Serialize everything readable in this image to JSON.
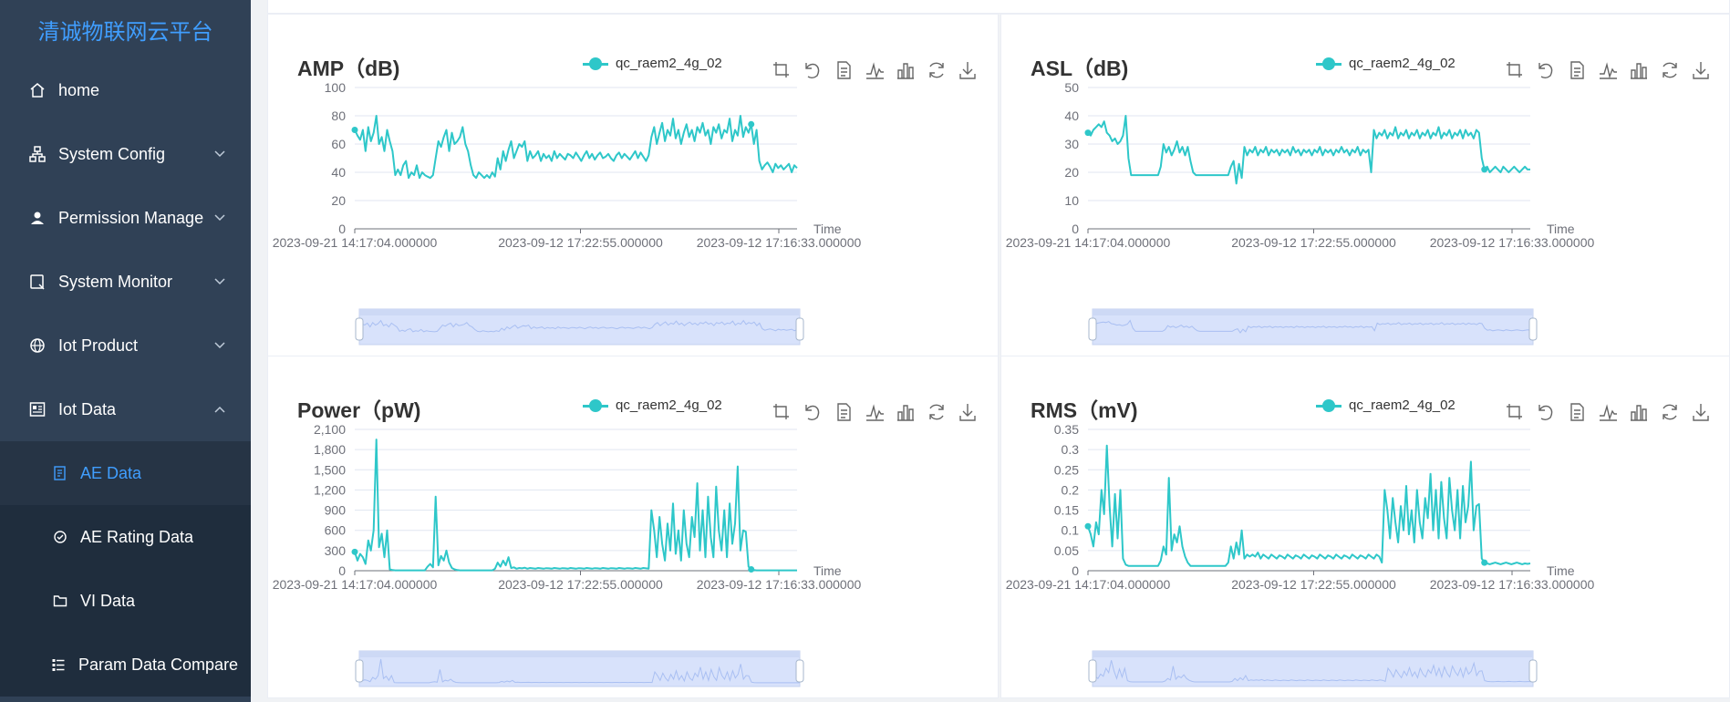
{
  "brand": "清诚物联网云平台",
  "menu": [
    {
      "key": "home",
      "label": "home",
      "icon": "home-icon",
      "expandable": false
    },
    {
      "key": "system-config",
      "label": "System Config",
      "icon": "sitemap-icon",
      "expandable": true,
      "expanded": false
    },
    {
      "key": "permission-manage",
      "label": "Permission Manage",
      "icon": "user-icon",
      "expandable": true,
      "expanded": false
    },
    {
      "key": "system-monitor",
      "label": "System Monitor",
      "icon": "monitor-icon",
      "expandable": true,
      "expanded": false
    },
    {
      "key": "iot-product",
      "label": "Iot Product",
      "icon": "globe-icon",
      "expandable": true,
      "expanded": false
    },
    {
      "key": "iot-data",
      "label": "Iot Data",
      "icon": "data-icon",
      "expandable": true,
      "expanded": true
    }
  ],
  "submenu": [
    {
      "key": "ae-data",
      "label": "AE Data",
      "icon": "document-icon",
      "active": true
    },
    {
      "key": "ae-rating-data",
      "label": "AE Rating Data",
      "icon": "rating-icon",
      "active": false
    },
    {
      "key": "vi-data",
      "label": "VI Data",
      "icon": "folder-icon",
      "active": false
    },
    {
      "key": "param-data-compare",
      "label": "Param Data Compare",
      "icon": "list-icon",
      "active": false
    }
  ],
  "colors": {
    "sidebar": "#304156",
    "accent": "#409eff",
    "series": "#2ec7c9",
    "submenu_bg": "#1f2d3d"
  },
  "chart_data": [
    {
      "type": "line",
      "title": "AMP（dB)",
      "legend": [
        "qc_raem2_4g_02"
      ],
      "xlabel": "Time",
      "ylim": [
        0,
        100
      ],
      "yticks": [
        "0",
        "20",
        "40",
        "60",
        "80",
        "100"
      ],
      "xticks": [
        "2023-09-21 14:17:04.000000",
        "2023-09-12 17:22:55.000000",
        "2023-09-12 17:16:33.000000"
      ],
      "series": [
        {
          "name": "qc_raem2_4g_02",
          "values": [
            70,
            66,
            63,
            70,
            55,
            72,
            62,
            68,
            80,
            60,
            65,
            55,
            70,
            62,
            55,
            38,
            42,
            38,
            45,
            48,
            36,
            40,
            38,
            45,
            36,
            40,
            38,
            37,
            36,
            38,
            50,
            62,
            58,
            65,
            70,
            55,
            68,
            60,
            62,
            65,
            72,
            60,
            55,
            45,
            38,
            36,
            40,
            38,
            36,
            38,
            36,
            40,
            37,
            50,
            42,
            55,
            48,
            56,
            62,
            50,
            55,
            60,
            58,
            62,
            48,
            55,
            50,
            52,
            55,
            48,
            53,
            50,
            52,
            48,
            55,
            50,
            53,
            51,
            49,
            53,
            52,
            50,
            54,
            51,
            48,
            52,
            55,
            50,
            53,
            49,
            52,
            54,
            50,
            51,
            53,
            50,
            48,
            52,
            54,
            50,
            53,
            51,
            49,
            52,
            55,
            50,
            54,
            51,
            48,
            52,
            65,
            72,
            60,
            68,
            75,
            62,
            70,
            66,
            78,
            64,
            70,
            60,
            68,
            74,
            65,
            70,
            62,
            72,
            68,
            75,
            66,
            70,
            60,
            72,
            68,
            74,
            64,
            70,
            68,
            78,
            62,
            70,
            66,
            80,
            65,
            72,
            68,
            74,
            60,
            70,
            48,
            42,
            45,
            47,
            44,
            40,
            46,
            43,
            45,
            42,
            44,
            46,
            40,
            45,
            43
          ]
        }
      ]
    },
    {
      "type": "line",
      "title": "ASL（dB)",
      "legend": [
        "qc_raem2_4g_02"
      ],
      "xlabel": "Time",
      "ylim": [
        0,
        50
      ],
      "yticks": [
        "0",
        "10",
        "20",
        "30",
        "40",
        "50"
      ],
      "xticks": [
        "2023-09-21 14:17:04.000000",
        "2023-09-12 17:22:55.000000",
        "2023-09-12 17:16:33.000000"
      ],
      "series": [
        {
          "name": "qc_raem2_4g_02",
          "values": [
            34,
            33,
            35,
            36,
            37,
            36,
            38,
            34,
            33,
            31,
            32,
            30,
            31,
            33,
            40,
            25,
            19,
            19,
            19,
            19,
            19,
            19,
            19,
            19,
            19,
            19,
            19,
            22,
            30,
            27,
            29,
            26,
            28,
            31,
            27,
            29,
            26,
            29,
            24,
            20,
            19,
            19,
            19,
            19,
            19,
            19,
            19,
            19,
            19,
            19,
            19,
            19,
            19,
            22,
            24,
            16,
            23,
            18,
            29,
            26,
            28,
            27,
            29,
            26,
            28,
            27,
            29,
            26,
            28,
            27,
            28,
            26,
            28,
            27,
            28,
            26,
            29,
            27,
            28,
            26,
            28,
            27,
            28,
            26,
            28,
            27,
            29,
            26,
            28,
            27,
            28,
            26,
            28,
            27,
            29,
            27,
            28,
            26,
            28,
            27,
            29,
            26,
            28,
            27,
            28,
            20,
            35,
            32,
            34,
            33,
            35,
            32,
            34,
            33,
            36,
            32,
            34,
            33,
            35,
            32,
            34,
            33,
            35,
            32,
            34,
            33,
            35,
            32,
            34,
            33,
            36,
            32,
            34,
            33,
            35,
            32,
            34,
            33,
            35,
            32,
            35,
            33,
            34,
            32,
            35,
            34,
            25,
            21,
            22,
            20,
            21,
            22,
            21,
            20,
            22,
            21,
            20,
            21,
            22,
            21,
            20,
            21,
            22,
            21,
            21
          ]
        }
      ]
    },
    {
      "type": "line",
      "title": "Power（pW)",
      "legend": [
        "qc_raem2_4g_02"
      ],
      "xlabel": "Time",
      "ylim": [
        0,
        2100
      ],
      "yticks": [
        "0",
        "300",
        "600",
        "900",
        "1,200",
        "1,500",
        "1,800",
        "2,100"
      ],
      "xticks": [
        "2023-09-21 14:17:04.000000",
        "2023-09-12 17:22:55.000000",
        "2023-09-12 17:16:33.000000"
      ],
      "series": [
        {
          "name": "qc_raem2_4g_02",
          "values": [
            280,
            150,
            250,
            200,
            100,
            450,
            300,
            600,
            1950,
            350,
            550,
            200,
            600,
            20,
            10,
            5,
            5,
            5,
            5,
            5,
            5,
            5,
            5,
            5,
            5,
            5,
            5,
            60,
            100,
            50,
            1100,
            80,
            220,
            150,
            300,
            120,
            40,
            20,
            10,
            5,
            5,
            5,
            5,
            5,
            5,
            5,
            5,
            5,
            5,
            5,
            5,
            5,
            30,
            120,
            60,
            150,
            80,
            200,
            40,
            50,
            30,
            40,
            35,
            45,
            30,
            40,
            35,
            30,
            40,
            35,
            30,
            38,
            35,
            30,
            40,
            35,
            30,
            38,
            35,
            30,
            40,
            35,
            30,
            38,
            35,
            30,
            40,
            35,
            30,
            38,
            35,
            30,
            40,
            35,
            30,
            38,
            35,
            30,
            40,
            35,
            30,
            38,
            35,
            30,
            40,
            35,
            30,
            40,
            35,
            30,
            900,
            600,
            200,
            800,
            400,
            150,
            700,
            300,
            1000,
            250,
            600,
            150,
            900,
            400,
            200,
            800,
            500,
            1300,
            300,
            900,
            200,
            1100,
            500,
            200,
            1250,
            600,
            300,
            900,
            200,
            1000,
            400,
            700,
            1550,
            300,
            600,
            580,
            60,
            20,
            10,
            5,
            5,
            5,
            5,
            5,
            5,
            5,
            5,
            5,
            5,
            5,
            5,
            5,
            5,
            5,
            5
          ]
        }
      ]
    },
    {
      "type": "line",
      "title": "RMS（mV)",
      "legend": [
        "qc_raem2_4g_02"
      ],
      "xlabel": "Time",
      "ylim": [
        0,
        0.35
      ],
      "yticks": [
        "0",
        "0.05",
        "0.1",
        "0.15",
        "0.2",
        "0.25",
        "0.3",
        "0.35"
      ],
      "xticks": [
        "2023-09-21 14:17:04.000000",
        "2023-09-12 17:22:55.000000",
        "2023-09-12 17:16:33.000000"
      ],
      "series": [
        {
          "name": "qc_raem2_4g_02",
          "values": [
            0.11,
            0.09,
            0.06,
            0.12,
            0.09,
            0.2,
            0.14,
            0.31,
            0.16,
            0.06,
            0.19,
            0.08,
            0.2,
            0.03,
            0.015,
            0.012,
            0.012,
            0.012,
            0.012,
            0.012,
            0.012,
            0.012,
            0.012,
            0.012,
            0.012,
            0.012,
            0.012,
            0.025,
            0.06,
            0.04,
            0.23,
            0.05,
            0.09,
            0.07,
            0.11,
            0.06,
            0.035,
            0.02,
            0.012,
            0.012,
            0.012,
            0.012,
            0.012,
            0.012,
            0.012,
            0.012,
            0.012,
            0.012,
            0.012,
            0.012,
            0.012,
            0.012,
            0.02,
            0.06,
            0.03,
            0.07,
            0.04,
            0.1,
            0.03,
            0.04,
            0.035,
            0.04,
            0.035,
            0.045,
            0.03,
            0.04,
            0.035,
            0.03,
            0.04,
            0.035,
            0.03,
            0.038,
            0.035,
            0.03,
            0.04,
            0.035,
            0.03,
            0.038,
            0.035,
            0.03,
            0.04,
            0.035,
            0.03,
            0.038,
            0.035,
            0.03,
            0.04,
            0.035,
            0.03,
            0.038,
            0.035,
            0.03,
            0.04,
            0.035,
            0.03,
            0.038,
            0.035,
            0.03,
            0.04,
            0.035,
            0.03,
            0.038,
            0.035,
            0.03,
            0.04,
            0.035,
            0.03,
            0.04,
            0.035,
            0.02,
            0.2,
            0.15,
            0.08,
            0.18,
            0.12,
            0.07,
            0.16,
            0.1,
            0.21,
            0.09,
            0.15,
            0.07,
            0.2,
            0.12,
            0.08,
            0.18,
            0.13,
            0.24,
            0.1,
            0.2,
            0.08,
            0.22,
            0.13,
            0.08,
            0.23,
            0.15,
            0.1,
            0.2,
            0.08,
            0.21,
            0.12,
            0.16,
            0.27,
            0.1,
            0.16,
            0.165,
            0.03,
            0.02,
            0.018,
            0.016,
            0.018,
            0.02,
            0.018,
            0.016,
            0.018,
            0.02,
            0.018,
            0.016,
            0.018,
            0.02,
            0.018,
            0.016,
            0.018,
            0.017,
            0.018
          ]
        }
      ]
    }
  ]
}
